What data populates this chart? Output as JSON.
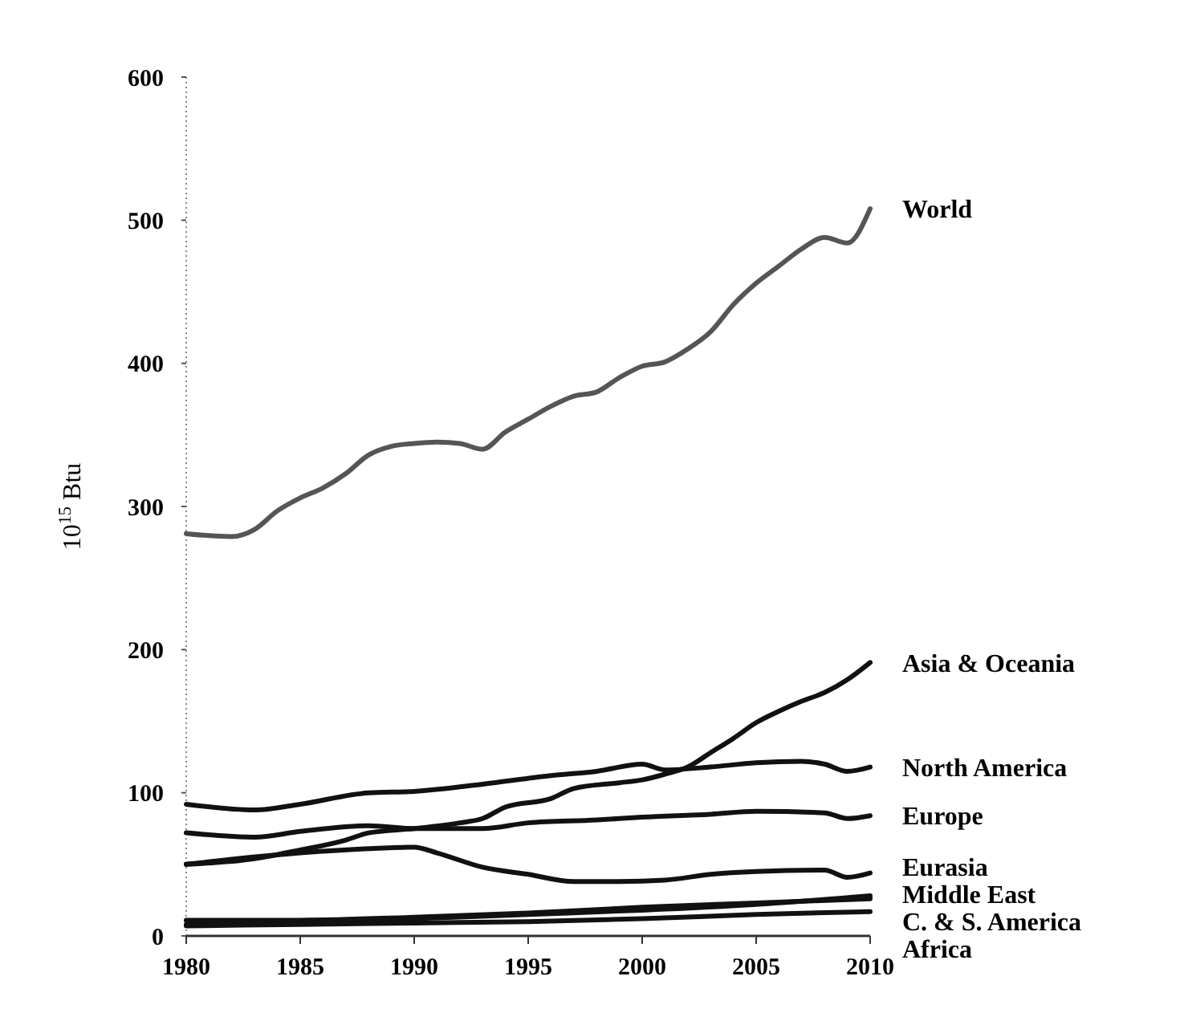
{
  "chart_data": {
    "type": "line",
    "ylabel": "10$^{15}$ Btu",
    "xlim": [
      1980,
      2010
    ],
    "xticks": [
      1980,
      1985,
      1990,
      1995,
      2000,
      2005,
      2010
    ],
    "ylim": [
      0,
      600
    ],
    "yticks": [
      0,
      100,
      200,
      300,
      400,
      500,
      600
    ],
    "grid": false,
    "marker": "none",
    "line_style": "solid",
    "series": [
      {
        "name": "World",
        "color": "#555555",
        "x": [
          1980,
          1982,
          1983,
          1984,
          1985,
          1986,
          1987,
          1988,
          1989,
          1990,
          1991,
          1992,
          1993,
          1994,
          1995,
          1996,
          1997,
          1998,
          1999,
          2000,
          2001,
          2002,
          2003,
          2004,
          2005,
          2006,
          2007,
          2008,
          2009,
          2010
        ],
        "values": [
          281,
          279,
          284,
          297,
          306,
          313,
          323,
          336,
          342,
          344,
          345,
          344,
          340,
          352,
          361,
          370,
          377,
          380,
          390,
          398,
          401,
          410,
          422,
          441,
          456,
          468,
          480,
          488,
          484,
          508
        ]
      },
      {
        "name": "Asia & Oceania",
        "color": "#111111",
        "x": [
          1980,
          1983,
          1985,
          1987,
          1988,
          1990,
          1992,
          1993,
          1994,
          1996,
          1997,
          1999,
          2000,
          2001,
          2002,
          2003,
          2004,
          2005,
          2006,
          2007,
          2008,
          2009,
          2010
        ],
        "values": [
          50,
          54,
          60,
          67,
          72,
          75,
          79,
          82,
          90,
          96,
          103,
          107,
          109,
          113,
          118,
          128,
          138,
          149,
          157,
          164,
          170,
          179,
          191
        ]
      },
      {
        "name": "North America",
        "color": "#111111",
        "x": [
          1980,
          1983,
          1985,
          1988,
          1990,
          1993,
          1996,
          1998,
          2000,
          2001,
          2003,
          2005,
          2007,
          2008,
          2009,
          2010
        ],
        "values": [
          92,
          88,
          92,
          100,
          101,
          106,
          112,
          115,
          120,
          116,
          118,
          121,
          122,
          120,
          115,
          118
        ]
      },
      {
        "name": "Europe",
        "color": "#111111",
        "x": [
          1980,
          1983,
          1985,
          1988,
          1990,
          1993,
          1995,
          1998,
          2000,
          2003,
          2005,
          2008,
          2009,
          2010
        ],
        "values": [
          72,
          69,
          73,
          77,
          75,
          75,
          79,
          81,
          83,
          85,
          87,
          86,
          82,
          84
        ]
      },
      {
        "name": "Eurasia",
        "color": "#111111",
        "x": [
          1980,
          1985,
          1988,
          1990,
          1991,
          1993,
          1995,
          1997,
          1999,
          2001,
          2003,
          2005,
          2008,
          2009,
          2010
        ],
        "values": [
          50,
          58,
          61,
          62,
          58,
          48,
          43,
          38,
          38,
          39,
          43,
          45,
          46,
          41,
          44
        ]
      },
      {
        "name": "Middle East",
        "color": "#111111",
        "x": [
          1980,
          1985,
          1990,
          1995,
          2000,
          2005,
          2010
        ],
        "values": [
          8,
          10,
          12,
          15,
          18,
          22,
          28
        ]
      },
      {
        "name": "C. & S. America",
        "color": "#111111",
        "x": [
          1980,
          1985,
          1990,
          1995,
          2000,
          2005,
          2010
        ],
        "values": [
          11,
          11,
          13,
          16,
          20,
          23,
          26
        ]
      },
      {
        "name": "Africa",
        "color": "#111111",
        "x": [
          1980,
          1985,
          1990,
          1995,
          2000,
          2005,
          2010
        ],
        "values": [
          7,
          8,
          9,
          10,
          12,
          15,
          17
        ]
      }
    ]
  }
}
